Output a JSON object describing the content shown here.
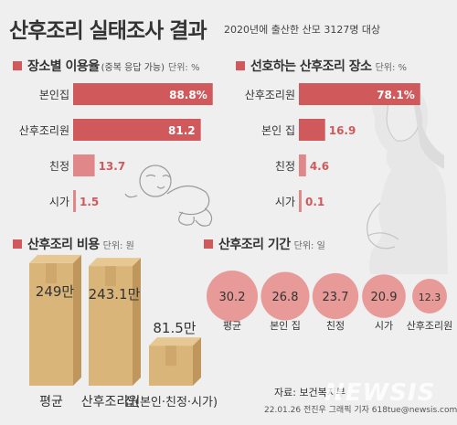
{
  "title": "산후조리 실태조사 결과",
  "subtitle": "2020년에 출산한 산모 3127명 대상",
  "colors": {
    "bar": "#d0595c",
    "bar_light": "#e0878a",
    "circle": "#e79a98",
    "box": "#d9b57a",
    "box_dark": "#bf975c",
    "label_value": "#ffffff",
    "out_value": "#d0595c"
  },
  "chart_data": [
    {
      "type": "bar",
      "orientation": "horizontal",
      "title": "장소별 이용율",
      "note": "(중복 응답 가능)",
      "unit": "단위: %",
      "categories": [
        "본인집",
        "산후조리원",
        "친정",
        "시가"
      ],
      "values": [
        88.8,
        81.2,
        13.7,
        1.5
      ],
      "value_labels": [
        "88.8%",
        "81.2",
        "13.7",
        "1.5"
      ],
      "xlim": [
        0,
        100
      ]
    },
    {
      "type": "bar",
      "orientation": "horizontal",
      "title": "선호하는 산후조리 장소",
      "unit": "단위: %",
      "categories": [
        "산후조리원",
        "본인 집",
        "친정",
        "시가"
      ],
      "values": [
        78.1,
        16.9,
        4.6,
        0.1
      ],
      "value_labels": [
        "78.1%",
        "16.9",
        "4.6",
        "0.1"
      ],
      "xlim": [
        0,
        100
      ]
    },
    {
      "type": "bar",
      "title": "산후조리 비용",
      "unit": "단위: 원",
      "categories": [
        "평균",
        "산후조리원",
        "집(본인·친정·시가)"
      ],
      "values": [
        249,
        243.1,
        81.5
      ],
      "value_labels": [
        "249만",
        "243.1만",
        "81.5만"
      ],
      "ylim": [
        0,
        260
      ]
    },
    {
      "type": "bubble",
      "title": "산후조리 기간",
      "unit": "단위: 일",
      "categories": [
        "평균",
        "본인 집",
        "친정",
        "시가",
        "산후조리원"
      ],
      "values": [
        30.2,
        26.8,
        23.7,
        20.9,
        12.3
      ],
      "value_labels": [
        "30.2",
        "26.8",
        "23.7",
        "20.9",
        "12.3"
      ]
    }
  ],
  "source": "자료: 보건복지부",
  "credit": "22.01.26 전진우 그래픽 기자 618tue@newsis.com",
  "watermark": "NEWSIS"
}
